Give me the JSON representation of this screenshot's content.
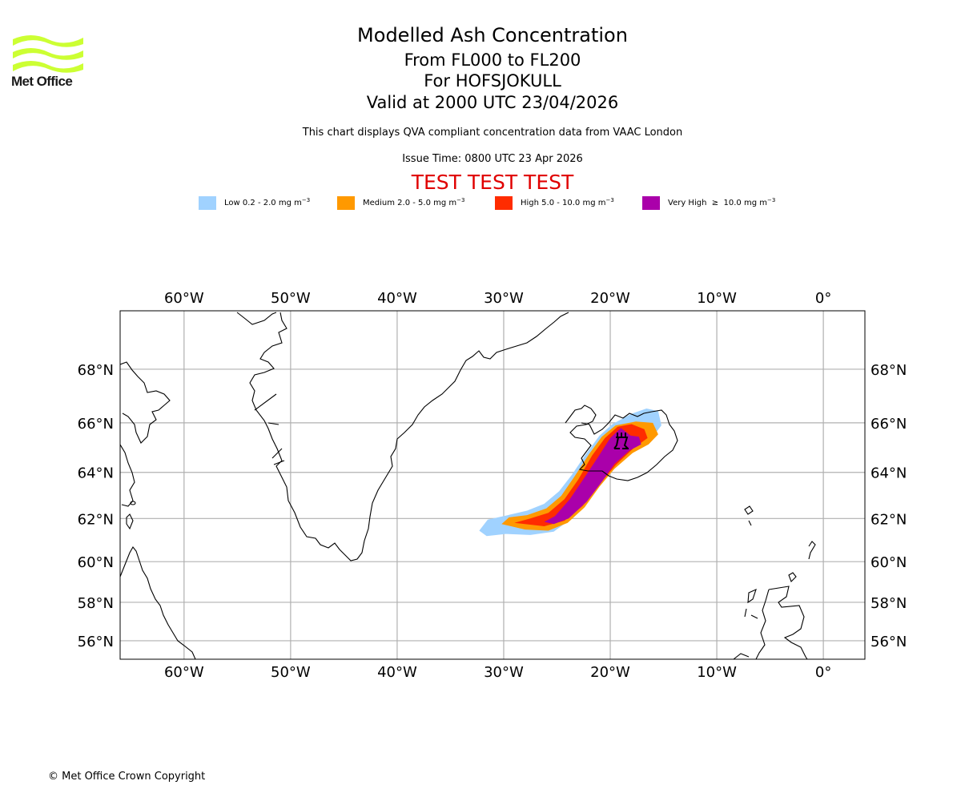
{
  "logo": {
    "text": "Met Office",
    "icon": "met-office-wave-logo-icon",
    "color": "#ccff33"
  },
  "header": {
    "title": "Modelled Ash Concentration",
    "subtitle_levels": "From FL000 to FL200",
    "subtitle_volcano": "For HOFSJOKULL",
    "subtitle_valid": "Valid at 2000 UTC 23/04/2026",
    "description": "This chart displays QVA compliant concentration data from VAAC London",
    "issue_time": "Issue Time: 0800 UTC 23 Apr 2026",
    "test_banner": "TEST TEST TEST",
    "test_color": "#e00000"
  },
  "legend": [
    {
      "label": "Low 0.2 - 2.0 mg m",
      "unit_exp": "−3",
      "color": "#a0d2ff"
    },
    {
      "label": "Medium 2.0 - 5.0 mg m",
      "unit_exp": "−3",
      "color": "#ff9900"
    },
    {
      "label": "High 5.0 - 10.0 mg m",
      "unit_exp": "−3",
      "color": "#ff2c00"
    },
    {
      "label": "Very High  ≥  10.0 mg m",
      "unit_exp": "−3",
      "color": "#aa00aa"
    }
  ],
  "footer": {
    "copyright": "© Met Office Crown Copyright"
  },
  "chart_data": {
    "type": "heatmap",
    "title": "Modelled Ash Concentration",
    "projection": "mercator",
    "extent": {
      "lon": [
        -66,
        3.9
      ],
      "lat": [
        55,
        70
      ]
    },
    "grid": true,
    "lon_ticks": [
      -60,
      -50,
      -40,
      -30,
      -20,
      -10,
      0
    ],
    "lon_tick_labels": [
      "60°W",
      "50°W",
      "40°W",
      "30°W",
      "20°W",
      "10°W",
      "0°"
    ],
    "lat_ticks": [
      68,
      66,
      64,
      62,
      60,
      58,
      56
    ],
    "lat_tick_labels": [
      "68°N",
      "66°N",
      "64°N",
      "62°N",
      "60°N",
      "58°N",
      "56°N"
    ],
    "volcano": {
      "name": "HOFSJOKULL",
      "lon": -18.8,
      "lat": 64.8,
      "symbol": "volcano-icon"
    },
    "levels": [
      {
        "name": "Low",
        "range_mg_m3": [
          0.2,
          2.0
        ],
        "color": "#a0d2ff",
        "polygon": [
          [
            -32.3,
            61.45
          ],
          [
            -31.5,
            61.95
          ],
          [
            -29.6,
            62.15
          ],
          [
            -27.8,
            62.35
          ],
          [
            -26.2,
            62.65
          ],
          [
            -24.8,
            63.2
          ],
          [
            -23.6,
            63.9
          ],
          [
            -22.3,
            64.75
          ],
          [
            -21.0,
            65.5
          ],
          [
            -19.8,
            65.95
          ],
          [
            -18.0,
            66.35
          ],
          [
            -16.6,
            66.55
          ],
          [
            -15.5,
            66.45
          ],
          [
            -15.2,
            65.9
          ],
          [
            -16.2,
            65.35
          ],
          [
            -17.5,
            64.95
          ],
          [
            -19.5,
            64.3
          ],
          [
            -20.8,
            63.7
          ],
          [
            -22.0,
            62.9
          ],
          [
            -23.5,
            62.05
          ],
          [
            -25.3,
            61.4
          ],
          [
            -27.5,
            61.25
          ],
          [
            -29.8,
            61.3
          ],
          [
            -31.6,
            61.2
          ]
        ]
      },
      {
        "name": "Medium",
        "range_mg_m3": [
          2.0,
          5.0
        ],
        "color": "#ff9900",
        "polygon": [
          [
            -30.2,
            61.75
          ],
          [
            -29.5,
            62.05
          ],
          [
            -27.8,
            62.15
          ],
          [
            -26.0,
            62.45
          ],
          [
            -24.6,
            63.0
          ],
          [
            -23.4,
            63.8
          ],
          [
            -22.0,
            64.75
          ],
          [
            -20.8,
            65.45
          ],
          [
            -19.5,
            65.9
          ],
          [
            -17.6,
            66.05
          ],
          [
            -16.0,
            66.0
          ],
          [
            -15.5,
            65.55
          ],
          [
            -16.4,
            65.15
          ],
          [
            -17.9,
            64.8
          ],
          [
            -19.6,
            64.15
          ],
          [
            -21.0,
            63.4
          ],
          [
            -22.4,
            62.5
          ],
          [
            -24.0,
            61.8
          ],
          [
            -25.8,
            61.45
          ],
          [
            -28.0,
            61.5
          ]
        ]
      },
      {
        "name": "High",
        "range_mg_m3": [
          5.0,
          10.0
        ],
        "color": "#ff2c00",
        "polygon": [
          [
            -29.0,
            61.8
          ],
          [
            -27.5,
            62.0
          ],
          [
            -25.8,
            62.25
          ],
          [
            -24.3,
            62.85
          ],
          [
            -23.0,
            63.7
          ],
          [
            -21.7,
            64.7
          ],
          [
            -20.5,
            65.4
          ],
          [
            -19.3,
            65.85
          ],
          [
            -18.0,
            65.95
          ],
          [
            -16.8,
            65.75
          ],
          [
            -16.5,
            65.4
          ],
          [
            -17.8,
            65.0
          ],
          [
            -19.5,
            64.3
          ],
          [
            -21.0,
            63.5
          ],
          [
            -22.6,
            62.55
          ],
          [
            -24.3,
            61.9
          ],
          [
            -26.2,
            61.65
          ]
        ]
      },
      {
        "name": "Very High",
        "range_mg_m3": [
          10.0,
          null
        ],
        "color": "#aa00aa",
        "polygon": [
          [
            -26.2,
            61.85
          ],
          [
            -25.2,
            62.1
          ],
          [
            -23.8,
            62.85
          ],
          [
            -22.4,
            63.8
          ],
          [
            -21.2,
            64.6
          ],
          [
            -20.0,
            65.4
          ],
          [
            -19.0,
            65.8
          ],
          [
            -18.1,
            65.5
          ],
          [
            -17.3,
            65.45
          ],
          [
            -17.1,
            65.15
          ],
          [
            -18.2,
            64.9
          ],
          [
            -19.6,
            64.35
          ],
          [
            -20.8,
            63.6
          ],
          [
            -22.2,
            62.75
          ],
          [
            -23.9,
            62.0
          ],
          [
            -25.3,
            61.75
          ]
        ]
      }
    ]
  }
}
